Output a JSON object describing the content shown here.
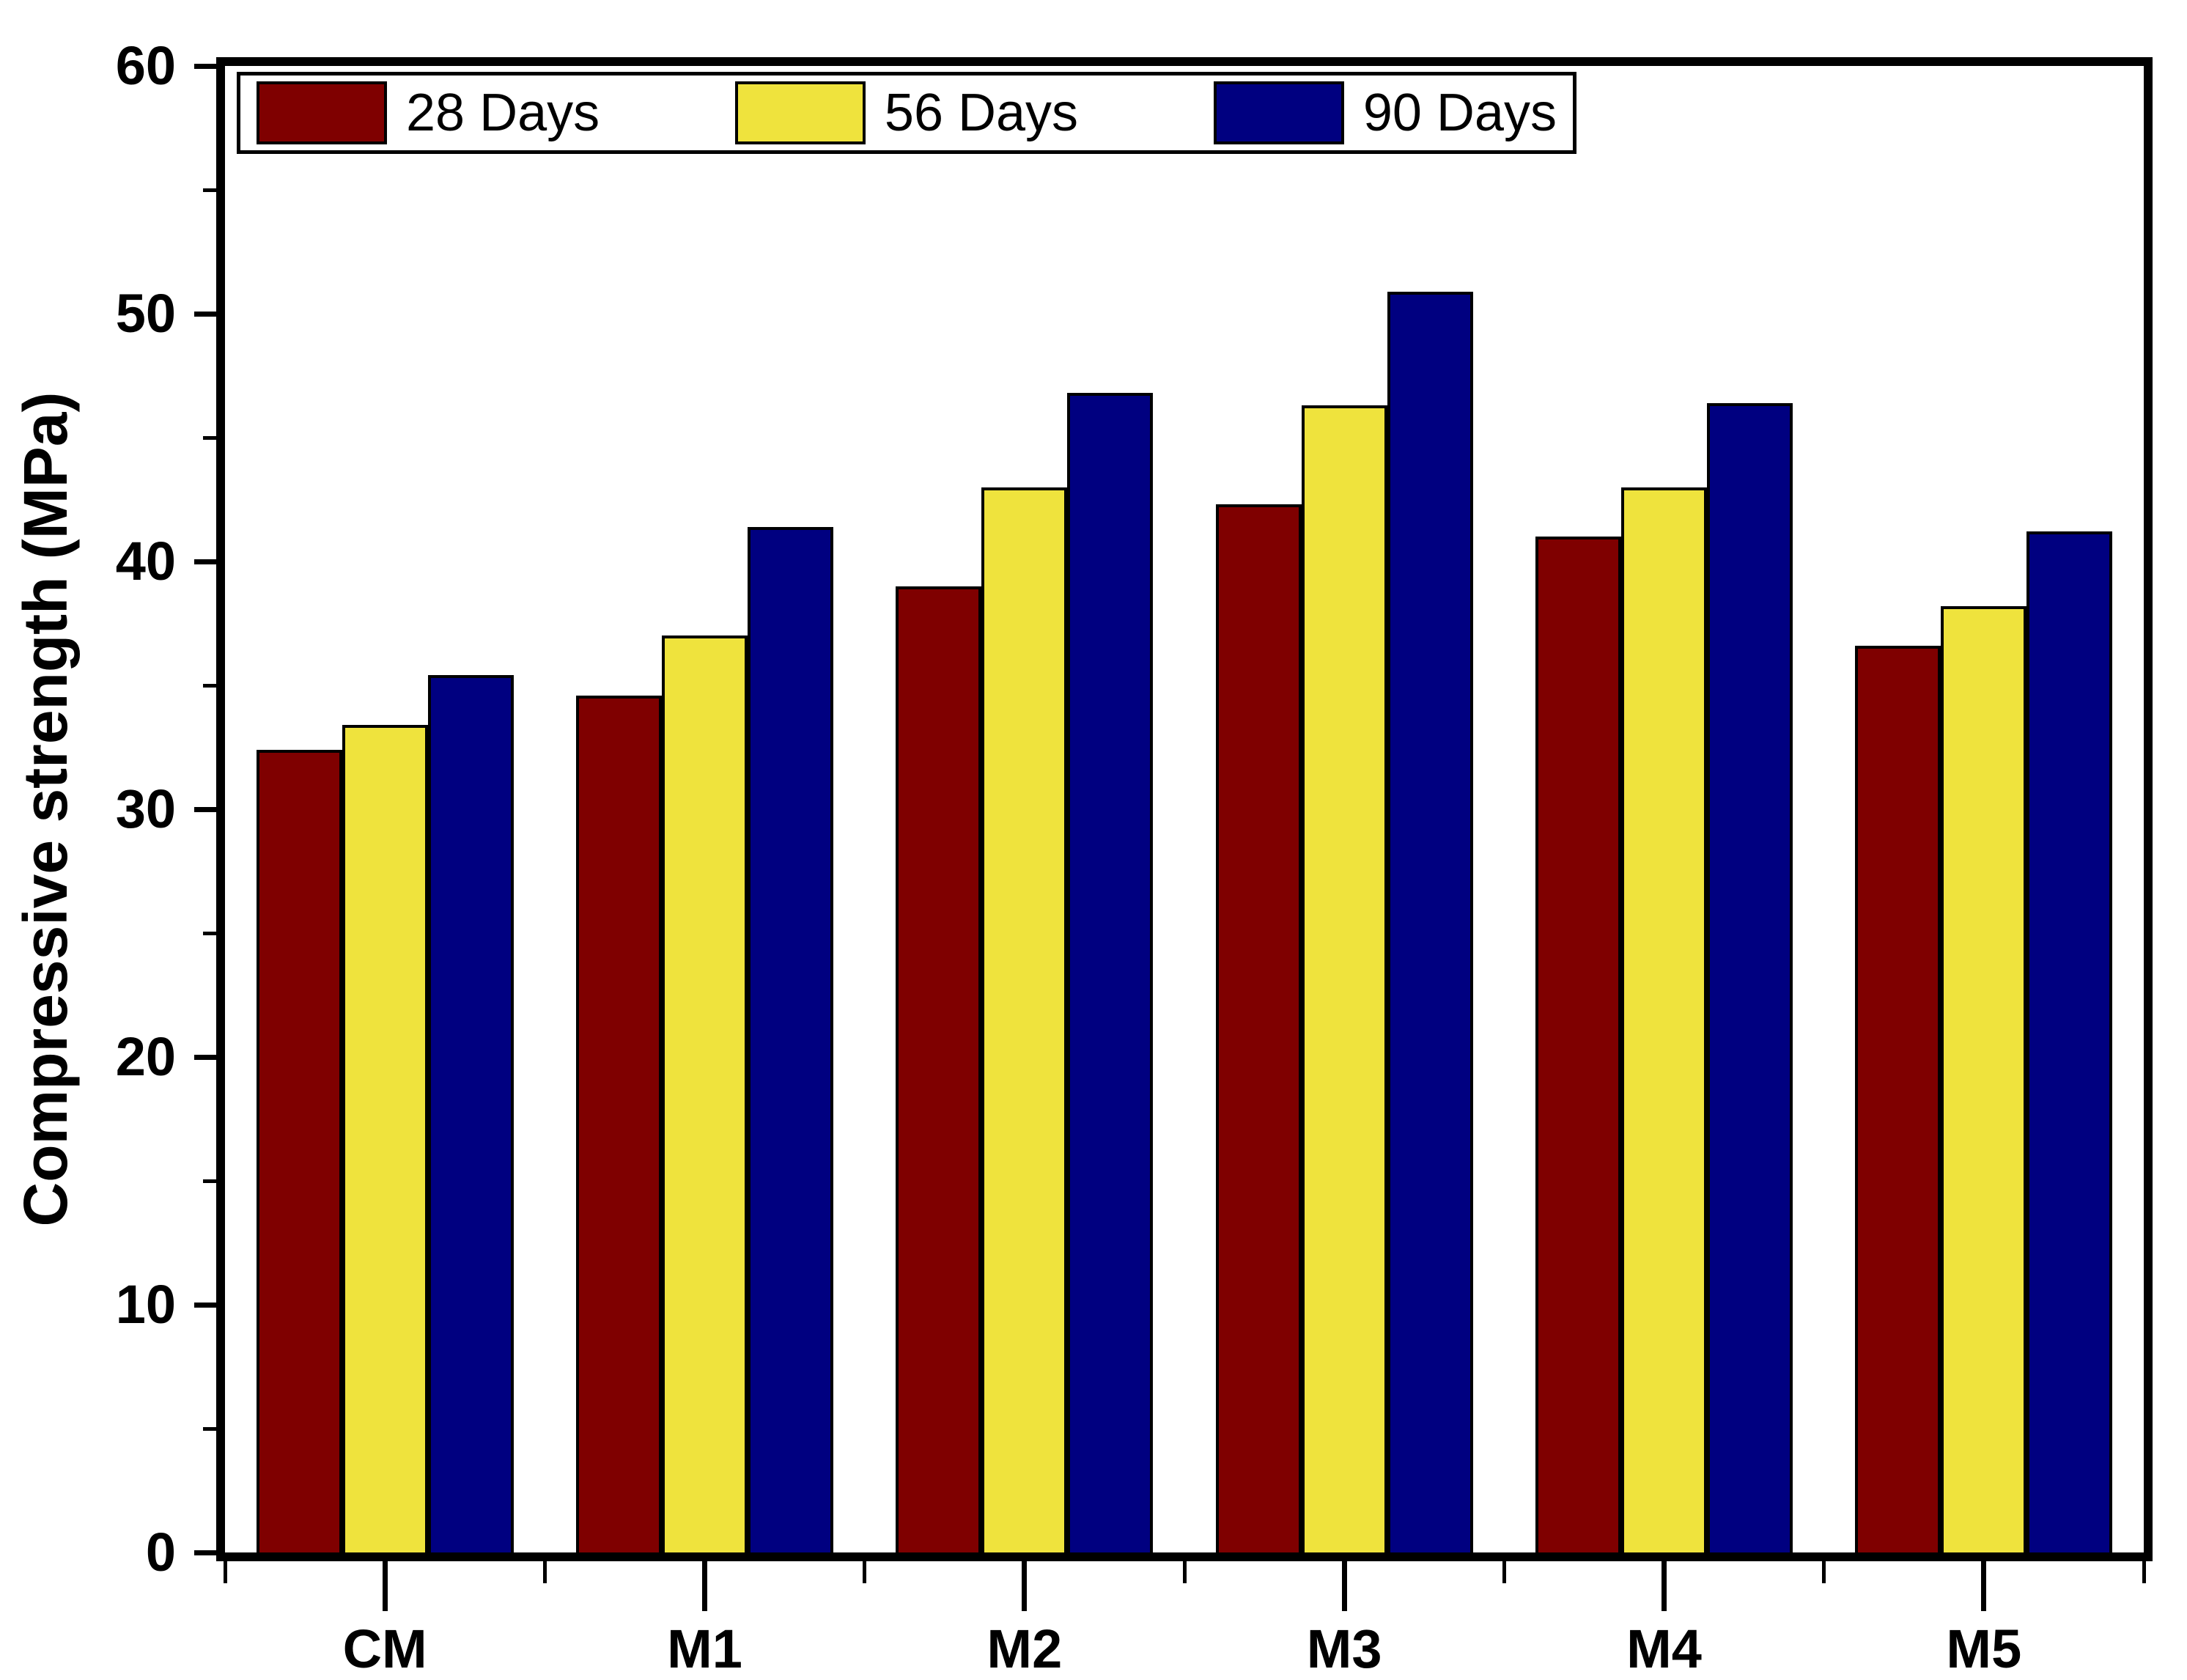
{
  "figure": {
    "background": "#ffffff",
    "axis_color": "#000000"
  },
  "chart_data": {
    "type": "bar",
    "title": "",
    "xlabel": "",
    "ylabel": "Compressive strength (MPa)",
    "ylim": [
      0,
      60
    ],
    "y_major_ticks": [
      0,
      10,
      20,
      30,
      40,
      50,
      60
    ],
    "y_minor_ticks": [
      5,
      15,
      25,
      35,
      45,
      55
    ],
    "grid": false,
    "legend_position": "top-left-inside",
    "categories": [
      "CM",
      "M1",
      "M2",
      "M3",
      "M4",
      "M5"
    ],
    "series": [
      {
        "name": "28 Days",
        "color": "#7F0000",
        "values": [
          32.4,
          34.6,
          39.0,
          42.3,
          41.0,
          36.6
        ]
      },
      {
        "name": "56 Days",
        "color": "#EFE33D",
        "values": [
          33.4,
          37.0,
          43.0,
          46.3,
          43.0,
          38.2
        ]
      },
      {
        "name": "90 Days",
        "color": "#000080",
        "values": [
          35.4,
          41.4,
          46.8,
          50.9,
          46.4,
          41.2
        ]
      }
    ]
  }
}
